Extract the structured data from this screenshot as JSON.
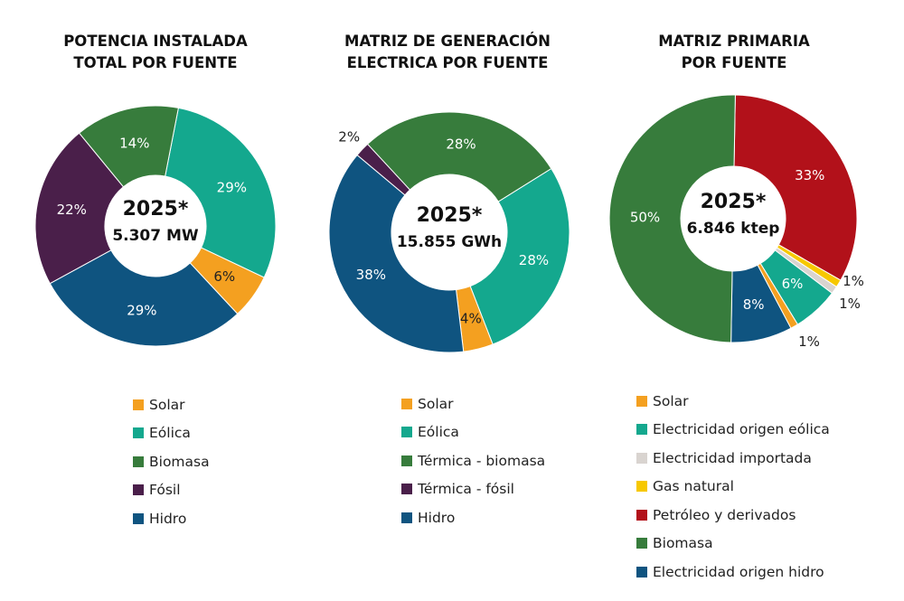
{
  "chart_data": [
    {
      "type": "pie",
      "title": "POTENCIA INSTALADA\nTOTAL POR FUENTE",
      "center_label": [
        "2025*",
        "5.307 MW"
      ],
      "series": [
        {
          "name": "Eólica",
          "value": 29,
          "label": "29%",
          "color": "#14a88e"
        },
        {
          "name": "Solar",
          "value": 6,
          "label": "6%",
          "color": "#f4a020"
        },
        {
          "name": "Hidro",
          "value": 29,
          "label": "29%",
          "color": "#0f5480"
        },
        {
          "name": "Fósil",
          "value": 22,
          "label": "22%",
          "color": "#4a1f4a"
        },
        {
          "name": "Biomasa",
          "value": 14,
          "label": "14%",
          "color": "#377c3c"
        }
      ],
      "legend": [
        "Solar",
        "Eólica",
        "Biomasa",
        "Fósil",
        "Hidro"
      ],
      "legend_placement": "bottom"
    },
    {
      "type": "pie",
      "title": "MATRIZ DE GENERACIÓN\nELECTRICA POR FUENTE",
      "center_label": [
        "2025*",
        "15.855 GWh"
      ],
      "series": [
        {
          "name": "Eólica",
          "value": 28,
          "label": "28%",
          "color": "#14a88e"
        },
        {
          "name": "Solar",
          "value": 4,
          "label": "4%",
          "color": "#f4a020"
        },
        {
          "name": "Hidro",
          "value": 38,
          "label": "38%",
          "color": "#0f5480"
        },
        {
          "name": "Térmica - fósil",
          "value": 2,
          "label": "2%",
          "color": "#4a1f4a"
        },
        {
          "name": "Térmica - biomasa",
          "value": 28,
          "label": "28%",
          "color": "#377c3c"
        }
      ],
      "legend": [
        "Solar",
        "Eólica",
        "Térmica - biomasa",
        "Térmica - fósil",
        "Hidro"
      ],
      "legend_placement": "bottom"
    },
    {
      "type": "pie",
      "title": "MATRIZ PRIMARIA\nPOR FUENTE",
      "center_label": [
        "2025*",
        "6.846 ktep"
      ],
      "series": [
        {
          "name": "Petróleo y derivados",
          "value": 33,
          "label": "33%",
          "color": "#b2111a"
        },
        {
          "name": "Gas natural",
          "value": 1,
          "label": "1%",
          "color": "#f7c800"
        },
        {
          "name": "Electricidad importada",
          "value": 1,
          "label": "1%",
          "color": "#d9d4d0"
        },
        {
          "name": "Electricidad origen eólica",
          "value": 6,
          "label": "6%",
          "color": "#14a88e"
        },
        {
          "name": "Solar",
          "value": 1,
          "label": "1%",
          "color": "#f4a020"
        },
        {
          "name": "Electricidad origen hidro",
          "value": 8,
          "label": "8%",
          "color": "#0f5480"
        },
        {
          "name": "Biomasa",
          "value": 50,
          "label": "50%",
          "color": "#377c3c"
        }
      ],
      "legend": [
        "Solar",
        "Electricidad origen eólica",
        "Electricidad importada",
        "Gas natural",
        "Petróleo y derivados",
        "Biomasa",
        "Electricidad origen hidro"
      ],
      "legend_placement": "bottom"
    }
  ]
}
